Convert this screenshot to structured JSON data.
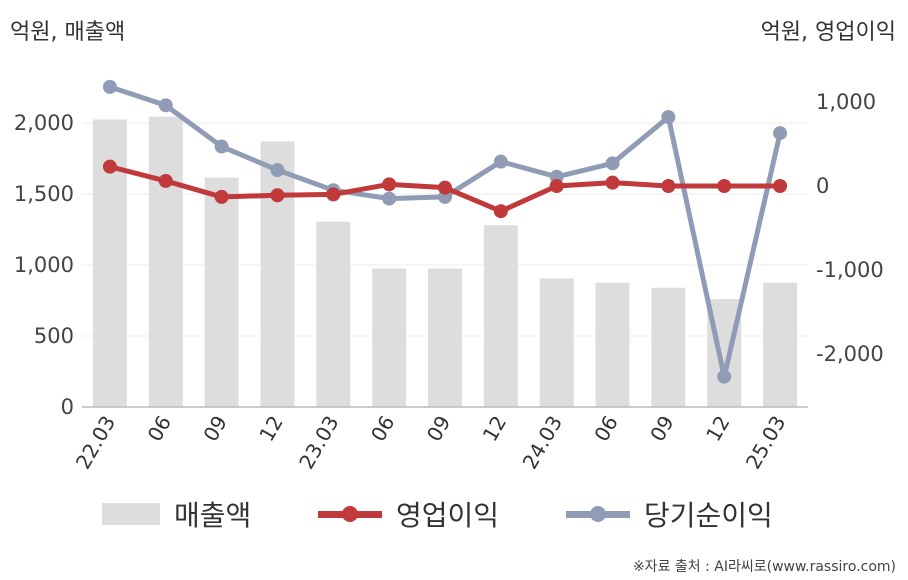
{
  "units": {
    "left": "억원, 매출액",
    "right": "억원, 영업이익"
  },
  "source": "※자료 출처 : AI라씨로(www.rassiro.com)",
  "colors": {
    "bar": "#dddddd",
    "op": "#c0393b",
    "net": "#909cb5",
    "axis": "#bbbbbb",
    "grid": "#eeeeee"
  },
  "chart_data": {
    "type": "bar+line",
    "categories": [
      "22.03",
      "06",
      "09",
      "12",
      "23.03",
      "06",
      "09",
      "12",
      "24.03",
      "06",
      "09",
      "12",
      "25.03"
    ],
    "left_axis": {
      "min": 0,
      "max": 2000,
      "ticks": [
        0,
        500,
        1000,
        1500,
        2000
      ],
      "tick_labels": [
        "0",
        "500",
        "1,000",
        "1,500",
        "2,000"
      ]
    },
    "right_axis": {
      "min": -2000,
      "max": 1000,
      "ticks": [
        -2000,
        -1000,
        0,
        1000
      ],
      "tick_labels": [
        "-2,000",
        "-1,000",
        "0",
        "1,000"
      ]
    },
    "series": [
      {
        "name": "매출액",
        "type": "bar",
        "axis": "left",
        "values": [
          2025,
          2045,
          1615,
          1870,
          1305,
          975,
          975,
          1280,
          905,
          875,
          840,
          760,
          875
        ]
      },
      {
        "name": "영업이익",
        "type": "line",
        "axis": "right",
        "values": [
          230,
          60,
          -130,
          -110,
          -100,
          20,
          -20,
          -300,
          0,
          40,
          0,
          0,
          0
        ]
      },
      {
        "name": "당기순이익",
        "type": "line",
        "axis": "right",
        "values": [
          1180,
          960,
          470,
          190,
          -50,
          -150,
          -130,
          290,
          110,
          270,
          820,
          -2270,
          630
        ]
      }
    ],
    "grid": true,
    "legend_position": "bottom"
  }
}
